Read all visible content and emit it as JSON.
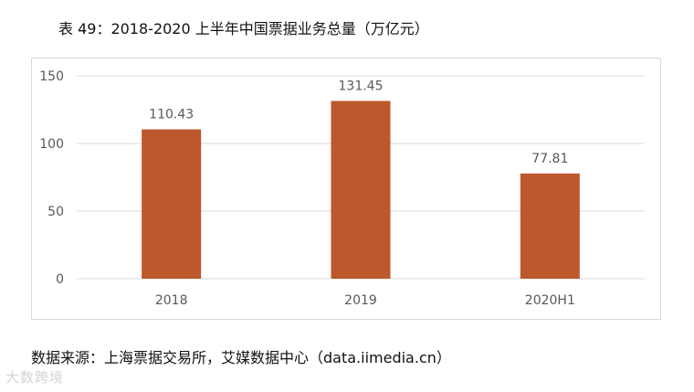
{
  "title": "表 49：2018-2020 上半年中国票据业务总量（万亿元）",
  "source": "数据来源：上海票据交易所，艾媒数据中心（data.iimedia.cn）",
  "watermark": "大数跨境",
  "colors": {
    "bar": "#BD582C",
    "grid": "#d9d9d9",
    "text": "#595959"
  },
  "chart_data": {
    "type": "bar",
    "categories": [
      "2018",
      "2019",
      "2020H1"
    ],
    "values": [
      110.43,
      131.45,
      77.81
    ],
    "data_labels": [
      "110.43",
      "131.45",
      "77.81"
    ],
    "ylim": [
      0,
      150
    ],
    "yticks": [
      0,
      50,
      100,
      150
    ],
    "grid": true,
    "legend": "none",
    "title": "",
    "xlabel": "",
    "ylabel": ""
  }
}
